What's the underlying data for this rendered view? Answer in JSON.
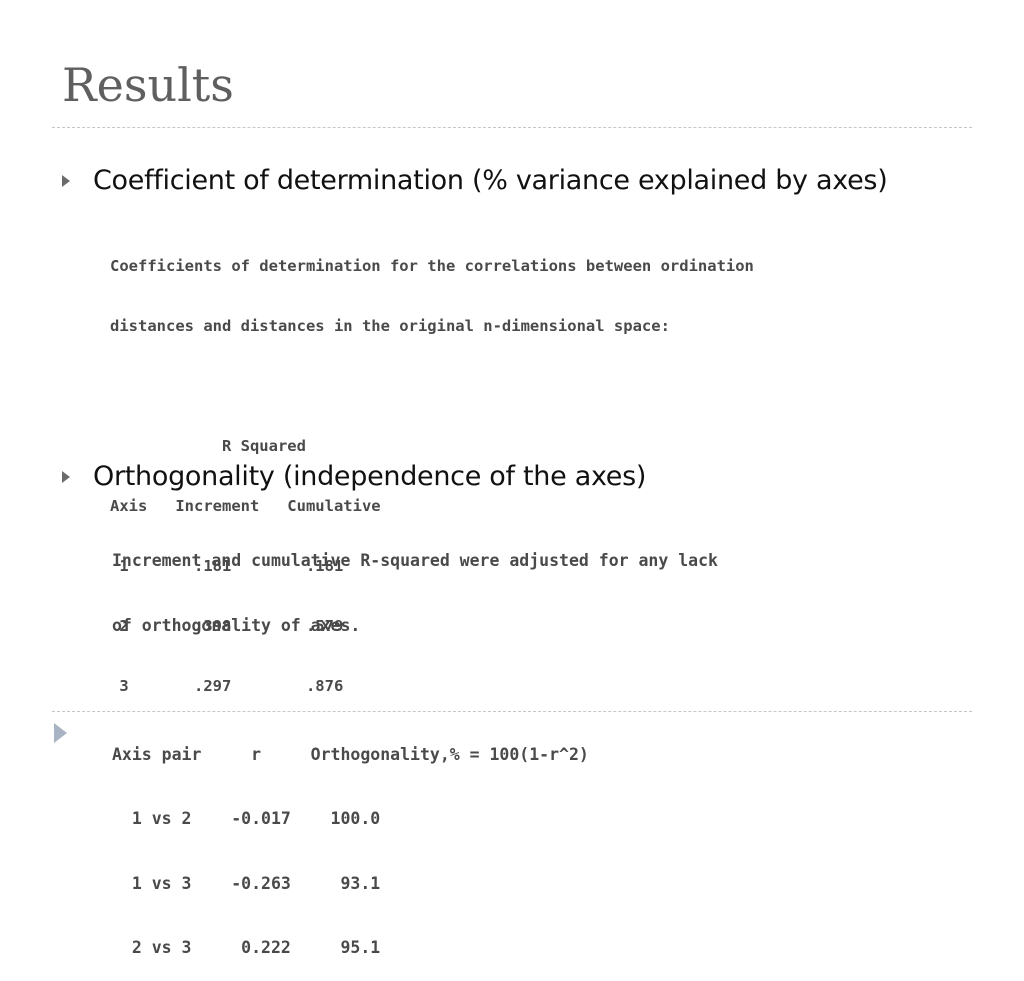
{
  "title": "Results",
  "bullets": [
    {
      "text": "Coefficient of determination (% variance explained by axes)",
      "lines": [
        "Coefficients of determination for the correlations between ordination",
        "distances and distances in the original n-dimensional space:",
        "",
        "            R Squared",
        "Axis   Increment   Cumulative",
        " 1       .181        .181",
        " 2       .398        .579",
        " 3       .297        .876"
      ]
    },
    {
      "text": "Orthogonality (independence of the axes)",
      "lines": [
        "Increment and cumulative R-squared were adjusted for any lack",
        "of orthogonality of axes.",
        "",
        "Axis pair     r     Orthogonality,% = 100(1-r^2)",
        "  1 vs 2    -0.017    100.0",
        "  1 vs 3    -0.263     93.1",
        "  2 vs 3     0.222     95.1"
      ]
    }
  ],
  "icons": {
    "bullet": "triangle-right-icon",
    "nav": "play-arrow-icon"
  },
  "colors": {
    "title": "#5f5f5f",
    "mono_text": "#4a4a4a",
    "bullet_marker": "#6b6b6b",
    "nav_arrow": "#a8b4c4"
  }
}
